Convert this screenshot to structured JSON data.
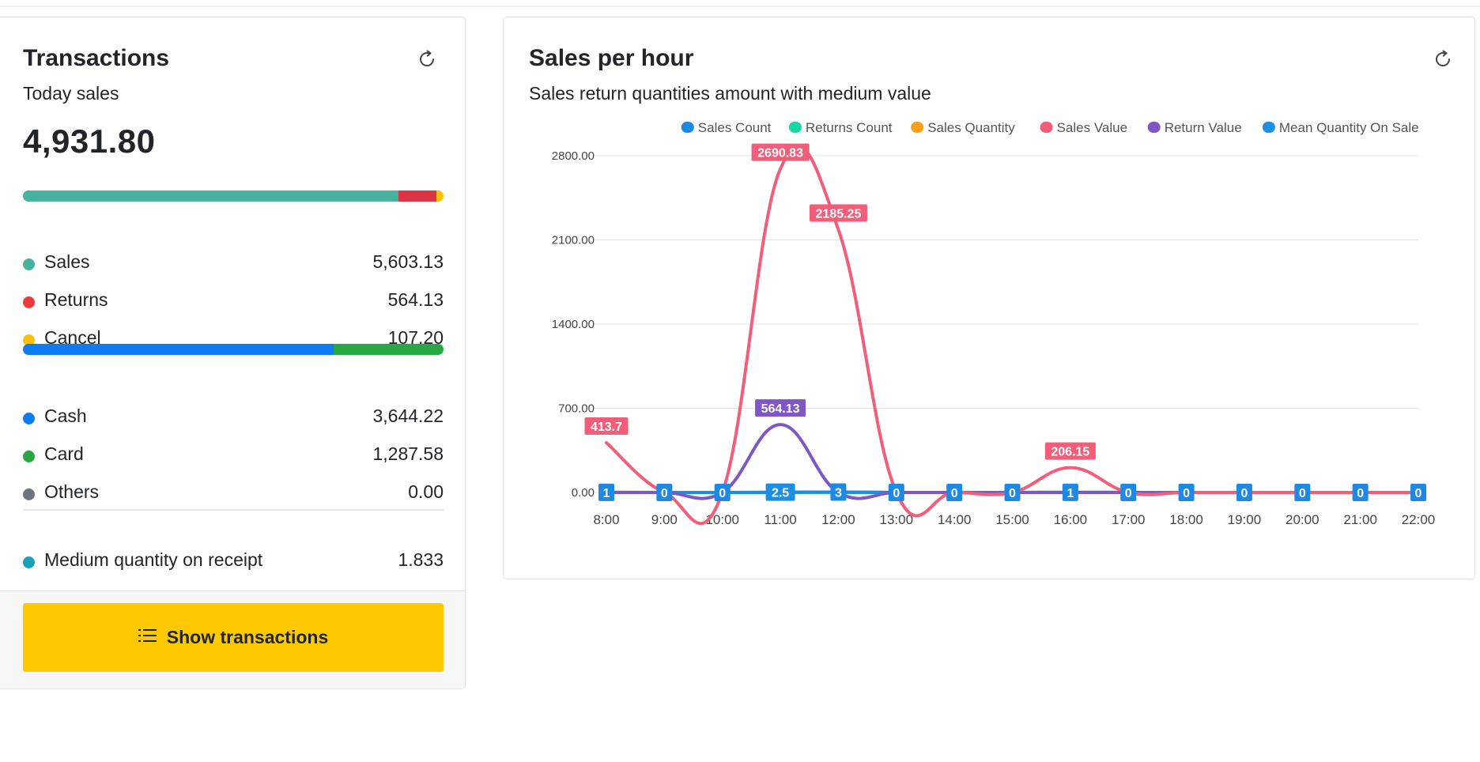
{
  "transactions": {
    "title": "Transactions",
    "subtitle": "Today sales",
    "total": "4,931.80",
    "status_bar": [
      {
        "name": "Sales",
        "value": 5603.13,
        "color": "#45b39d"
      },
      {
        "name": "Returns",
        "value": 564.13,
        "color": "#dc3545"
      },
      {
        "name": "Cancel",
        "value": 107.2,
        "color": "#ffc107"
      }
    ],
    "status_rows": [
      {
        "label": "Sales",
        "value": "5,603.13",
        "color": "#45b39d"
      },
      {
        "label": "Returns",
        "value": "564.13",
        "color": "#f03a3a"
      },
      {
        "label": "Cancel",
        "value": "107.20",
        "color": "#ffc107"
      }
    ],
    "payment_bar": [
      {
        "name": "Cash",
        "value": 3644.22,
        "color": "#0d7cf2"
      },
      {
        "name": "Card",
        "value": 1287.58,
        "color": "#28a745"
      },
      {
        "name": "Others",
        "value": 0.0,
        "color": "#6c757d"
      }
    ],
    "payment_rows": [
      {
        "label": "Cash",
        "value": "3,644.22",
        "color": "#0d7cf2"
      },
      {
        "label": "Card",
        "value": "1,287.58",
        "color": "#28a745"
      },
      {
        "label": "Others",
        "value": "0.00",
        "color": "#6c757d"
      }
    ],
    "medium": {
      "label": "Medium quantity on receipt",
      "value": "1.833",
      "color": "#17a2b8"
    },
    "button_label": "Show transactions"
  },
  "sales_chart": {
    "title": "Sales per hour",
    "subtitle": "Sales return quantities amount with medium value"
  },
  "chart_data": {
    "type": "line",
    "legend_position": "top-right",
    "grid": true,
    "ylim": [
      0,
      2800
    ],
    "yticks": [
      "2800.00",
      "2100.00",
      "1400.00",
      "700.00",
      "0.00"
    ],
    "ytick_values": [
      2800,
      2100,
      1400,
      700,
      0
    ],
    "categories": [
      "8:00",
      "9:00",
      "10:00",
      "11:00",
      "12:00",
      "13:00",
      "14:00",
      "15:00",
      "16:00",
      "17:00",
      "18:00",
      "19:00",
      "20:00",
      "21:00",
      "22:00"
    ],
    "series": [
      {
        "name": "Sales Count",
        "color": "#1e88e5",
        "values": [
          1,
          0,
          0,
          0,
          3,
          0,
          0,
          0,
          1,
          0,
          0,
          0,
          0,
          0,
          0
        ],
        "labels": [
          "1",
          "0",
          "0",
          "",
          "3",
          "0",
          "0",
          "0",
          "1",
          "0",
          "0",
          "0",
          "0",
          "0",
          "0"
        ]
      },
      {
        "name": "Returns Count",
        "color": "#17d6a0",
        "values": [
          0,
          0,
          0,
          1,
          0,
          0,
          0,
          0,
          0,
          0,
          0,
          0,
          0,
          0,
          0
        ],
        "labels": []
      },
      {
        "name": "Sales Quantity",
        "color": "#f8a21c",
        "values": [
          1,
          0,
          0,
          0,
          3,
          0,
          0,
          0,
          1,
          0,
          0,
          0,
          0,
          0,
          0
        ],
        "labels": []
      },
      {
        "name": "Sales Value",
        "color": "#f25d7a",
        "values": [
          413.7,
          0,
          0,
          2690.83,
          2185.25,
          0,
          0,
          0,
          206.15,
          0,
          0,
          0,
          0,
          0,
          0
        ],
        "labels": [
          "413.7",
          "",
          "",
          "2690.83",
          "2185.25",
          "",
          "",
          "",
          "206.15",
          "",
          "",
          "",
          "",
          "",
          ""
        ]
      },
      {
        "name": "Return Value",
        "color": "#7e57c2",
        "values": [
          0,
          0,
          0,
          564.13,
          0,
          0,
          0,
          0,
          0,
          0,
          0,
          0,
          0,
          0,
          0
        ],
        "labels": [
          "",
          "",
          "",
          "564.13",
          "",
          "",
          "",
          "",
          "",
          "",
          "",
          "",
          "",
          "",
          ""
        ]
      },
      {
        "name": "Mean Quantity On Sale",
        "color": "#1a8fe3",
        "values": [
          1,
          0,
          0,
          2.5,
          3,
          0,
          0,
          0,
          1,
          0,
          0,
          0,
          0,
          0,
          0
        ],
        "labels": [
          "",
          "",
          "",
          "2.5",
          "",
          "",
          "",
          "",
          "",
          "",
          "",
          "",
          "",
          "",
          ""
        ]
      }
    ]
  }
}
